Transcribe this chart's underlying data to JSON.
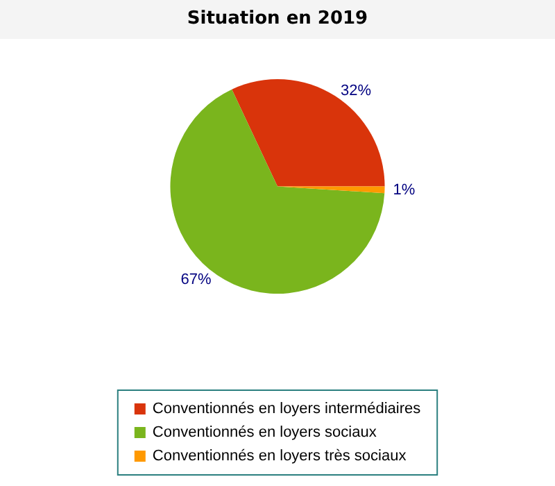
{
  "chart_data": {
    "type": "pie",
    "title": "Situation en 2019",
    "categories": [
      "Conventionnés en loyers intermédiaires",
      "Conventionnés en loyers sociaux",
      "Conventionnés en loyers très sociaux"
    ],
    "values": [
      32,
      67,
      1
    ],
    "colors": [
      "#d9340b",
      "#7ab51d",
      "#ff9900"
    ],
    "value_labels": [
      "32%",
      "67%",
      "1%"
    ],
    "legend": "bottom"
  }
}
